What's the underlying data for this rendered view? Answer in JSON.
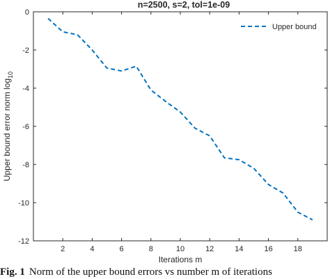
{
  "chart_data": {
    "type": "line",
    "title": "n=2500, s=2, tol=1e-09",
    "xlabel": "Iterations m",
    "ylabel": "Upper bound error norm log",
    "ylabel_subscript": "10",
    "xlim": [
      0,
      20
    ],
    "ylim": [
      -12,
      0
    ],
    "xticks": [
      "2",
      "4",
      "6",
      "8",
      "10",
      "12",
      "14",
      "16",
      "18"
    ],
    "yticks": [
      "0",
      "-2",
      "-4",
      "-6",
      "-8",
      "-10",
      "-12"
    ],
    "grid": false,
    "legend_position": "top-right",
    "series": [
      {
        "name": "Upper bound",
        "color": "#0072BD",
        "line_style": "dashed",
        "x": [
          1,
          2,
          3,
          4,
          5,
          6,
          7,
          8,
          9,
          10,
          11,
          12,
          13,
          14,
          15,
          16,
          17,
          18,
          19
        ],
        "y": [
          -0.35,
          -1.05,
          -1.2,
          -2.0,
          -2.95,
          -3.1,
          -2.85,
          -4.1,
          -4.7,
          -5.25,
          -6.1,
          -6.5,
          -7.65,
          -7.75,
          -8.2,
          -9.05,
          -9.5,
          -10.5,
          -10.9
        ]
      }
    ]
  },
  "caption": {
    "label": "Fig. 1",
    "text": "Norm of the upper bound errors vs number m of iterations"
  }
}
